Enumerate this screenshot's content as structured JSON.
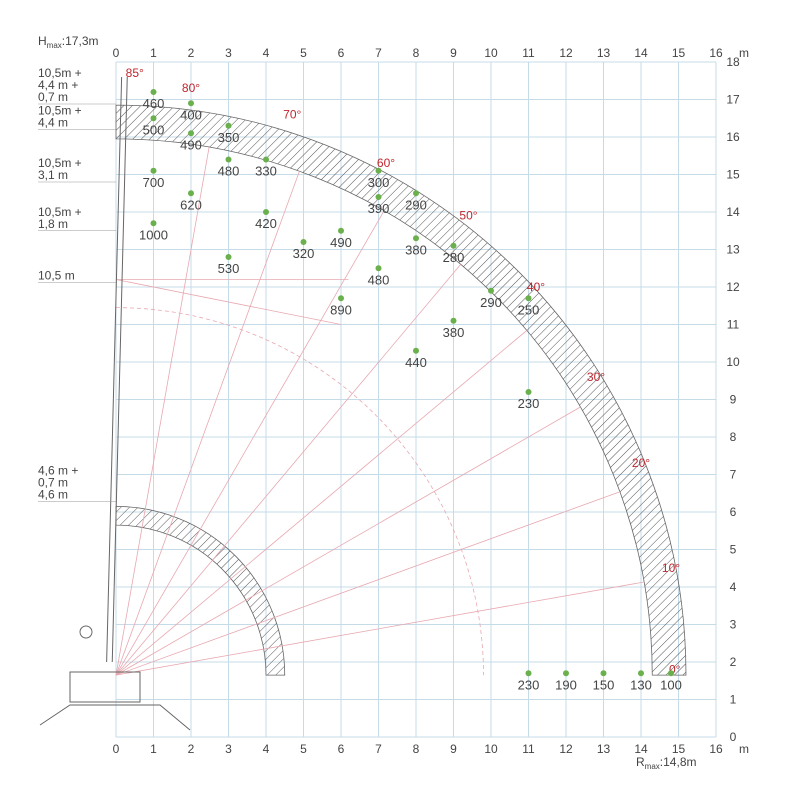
{
  "chart_data": {
    "type": "load-chart",
    "xlim": [
      0,
      16
    ],
    "ylim": [
      0,
      18
    ],
    "x_unit": "m",
    "y_unit": "m",
    "x_ticks": [
      0,
      1,
      2,
      3,
      4,
      5,
      6,
      7,
      8,
      9,
      10,
      11,
      12,
      13,
      14,
      15,
      16
    ],
    "y_ticks": [
      0,
      1,
      2,
      3,
      4,
      5,
      6,
      7,
      8,
      9,
      10,
      11,
      12,
      13,
      14,
      15,
      16,
      17,
      18
    ],
    "hmax_label": {
      "prefix": "H",
      "sub": "max",
      "value": ":17,3m"
    },
    "rmax_label": {
      "prefix": "R",
      "sub": "max",
      "value": ":14,8m"
    },
    "boom_labels": [
      {
        "lines": [
          "10,5m +",
          "4,4 m +",
          "0,7 m"
        ],
        "y": 17.6
      },
      {
        "lines": [
          "10,5m +",
          "4,4 m"
        ],
        "y": 16.6
      },
      {
        "lines": [
          "10,5m +",
          "3,1 m"
        ],
        "y": 15.2
      },
      {
        "lines": [
          "10,5m +",
          "1,8 m"
        ],
        "y": 13.9
      },
      {
        "lines": [
          "10,5 m"
        ],
        "y": 12.2
      },
      {
        "lines": [
          "4,6 m +",
          "0,7 m",
          "4,6 m"
        ],
        "y": 7.0
      }
    ],
    "angles": [
      {
        "label": "85°",
        "x": 0.5,
        "y": 17.6
      },
      {
        "label": "80°",
        "x": 2.0,
        "y": 17.2
      },
      {
        "label": "70°",
        "x": 4.7,
        "y": 16.5
      },
      {
        "label": "60°",
        "x": 7.2,
        "y": 15.2
      },
      {
        "label": "50°",
        "x": 9.4,
        "y": 13.8
      },
      {
        "label": "40°",
        "x": 11.2,
        "y": 11.9
      },
      {
        "label": "30°",
        "x": 12.8,
        "y": 9.5
      },
      {
        "label": "20°",
        "x": 14.0,
        "y": 7.2
      },
      {
        "label": "10°",
        "x": 14.8,
        "y": 4.4
      },
      {
        "label": "0°",
        "x": 14.9,
        "y": 1.7
      }
    ],
    "points": [
      {
        "x": 1.0,
        "y": 17.2,
        "load": "460"
      },
      {
        "x": 2.0,
        "y": 16.9,
        "load": "400"
      },
      {
        "x": 1.0,
        "y": 16.5,
        "load": "500"
      },
      {
        "x": 3.0,
        "y": 16.3,
        "load": "350"
      },
      {
        "x": 2.0,
        "y": 16.1,
        "load": "490"
      },
      {
        "x": 3.0,
        "y": 15.4,
        "load": "480"
      },
      {
        "x": 4.0,
        "y": 15.4,
        "load": "330"
      },
      {
        "x": 1.0,
        "y": 15.1,
        "load": "700"
      },
      {
        "x": 7.0,
        "y": 15.1,
        "load": "300"
      },
      {
        "x": 2.0,
        "y": 14.5,
        "load": "620"
      },
      {
        "x": 8.0,
        "y": 14.5,
        "load": "290"
      },
      {
        "x": 7.0,
        "y": 14.4,
        "load": "390"
      },
      {
        "x": 4.0,
        "y": 14.0,
        "load": "420"
      },
      {
        "x": 1.0,
        "y": 13.7,
        "load": "1000"
      },
      {
        "x": 6.0,
        "y": 13.5,
        "load": "490"
      },
      {
        "x": 8.0,
        "y": 13.3,
        "load": "380"
      },
      {
        "x": 5.0,
        "y": 13.2,
        "load": "320"
      },
      {
        "x": 9.0,
        "y": 13.1,
        "load": "280"
      },
      {
        "x": 3.0,
        "y": 12.8,
        "load": "530"
      },
      {
        "x": 7.0,
        "y": 12.5,
        "load": "480"
      },
      {
        "x": 10.0,
        "y": 11.9,
        "load": "290"
      },
      {
        "x": 11.0,
        "y": 11.7,
        "load": "250"
      },
      {
        "x": 6.0,
        "y": 11.7,
        "load": "890"
      },
      {
        "x": 9.0,
        "y": 11.1,
        "load": "380"
      },
      {
        "x": 8.0,
        "y": 10.3,
        "load": "440"
      },
      {
        "x": 11.0,
        "y": 9.2,
        "load": "230"
      },
      {
        "x": 11.0,
        "y": 1.7,
        "load": "230"
      },
      {
        "x": 12.0,
        "y": 1.7,
        "load": "190"
      },
      {
        "x": 13.0,
        "y": 1.7,
        "load": "150"
      },
      {
        "x": 14.0,
        "y": 1.7,
        "load": "130"
      },
      {
        "x": 14.8,
        "y": 1.7,
        "load": "100"
      }
    ]
  }
}
